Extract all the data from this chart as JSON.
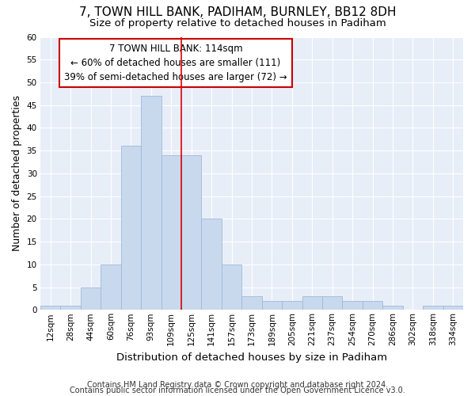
{
  "title": "7, TOWN HILL BANK, PADIHAM, BURNLEY, BB12 8DH",
  "subtitle": "Size of property relative to detached houses in Padiham",
  "xlabel": "Distribution of detached houses by size in Padiham",
  "ylabel": "Number of detached properties",
  "bar_color": "#c8d9ee",
  "bar_edge_color": "#a0b8d8",
  "fig_bg_color": "#ffffff",
  "plot_bg_color": "#e8eef8",
  "grid_color": "#ffffff",
  "vline_color": "#dd0000",
  "categories": [
    "12sqm",
    "28sqm",
    "44sqm",
    "60sqm",
    "76sqm",
    "93sqm",
    "109sqm",
    "125sqm",
    "141sqm",
    "157sqm",
    "173sqm",
    "189sqm",
    "205sqm",
    "221sqm",
    "237sqm",
    "254sqm",
    "270sqm",
    "286sqm",
    "302sqm",
    "318sqm",
    "334sqm"
  ],
  "values": [
    1,
    1,
    5,
    10,
    36,
    47,
    34,
    34,
    20,
    10,
    3,
    2,
    2,
    3,
    3,
    2,
    2,
    1,
    0,
    1,
    1
  ],
  "ylim": [
    0,
    60
  ],
  "yticks": [
    0,
    5,
    10,
    15,
    20,
    25,
    30,
    35,
    40,
    45,
    50,
    55,
    60
  ],
  "vline_x_idx": 6.5,
  "annotation_line1": "7 TOWN HILL BANK: 114sqm",
  "annotation_line2": "← 60% of detached houses are smaller (111)",
  "annotation_line3": "39% of semi-detached houses are larger (72) →",
  "annotation_box_edge_color": "#cc0000",
  "annotation_box_face_color": "#ffffff",
  "footnote1": "Contains HM Land Registry data © Crown copyright and database right 2024.",
  "footnote2": "Contains public sector information licensed under the Open Government Licence v3.0.",
  "title_fontsize": 11,
  "subtitle_fontsize": 9.5,
  "ylabel_fontsize": 9,
  "xlabel_fontsize": 9.5,
  "tick_fontsize": 7.5,
  "annotation_fontsize": 8.5,
  "footnote_fontsize": 7
}
